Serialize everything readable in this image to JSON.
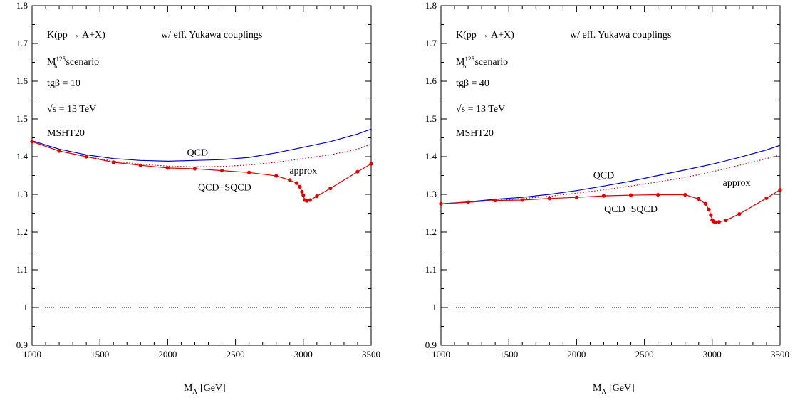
{
  "chart_data": [
    {
      "type": "line",
      "title_lines": [
        "K(pp → A+X)",
        "w/ eff. Yukawa couplings",
        "M_h^125 scenario",
        "tgβ = 10",
        "√s = 13 TeV",
        "MSHT20"
      ],
      "info": {
        "k_label": "K(pp → A+X)",
        "yukawa": "w/ eff. Yukawa couplings",
        "scenario_main": "M",
        "scenario_sub": "h",
        "scenario_sup": "125",
        "scenario_rest": "scenario",
        "tgb": "tgβ = 10",
        "sqrts": "√s = 13 TeV",
        "pdf": "MSHT20"
      },
      "xlabel_main": "M",
      "xlabel_sub": "A",
      "xlabel_rest": "[GeV]",
      "xlim": [
        1000,
        3500
      ],
      "ylim": [
        0.9,
        1.8
      ],
      "xticks": [
        "1000",
        "1500",
        "2000",
        "2500",
        "3000",
        "3500"
      ],
      "yticks": [
        "0.9",
        "1",
        "1.1",
        "1.2",
        "1.3",
        "1.4",
        "1.5",
        "1.6",
        "1.7",
        "1.8"
      ],
      "reference_line": 1.0,
      "series": [
        {
          "name": "QCD",
          "color": "#0000cc",
          "style": "solid",
          "x": [
            1000,
            1200,
            1400,
            1600,
            1800,
            2000,
            2200,
            2400,
            2600,
            2800,
            3000,
            3200,
            3400,
            3500
          ],
          "y": [
            1.442,
            1.42,
            1.405,
            1.395,
            1.39,
            1.388,
            1.39,
            1.392,
            1.398,
            1.41,
            1.425,
            1.44,
            1.46,
            1.473
          ]
        },
        {
          "name": "approx",
          "color": "#cc0000",
          "style": "dotted",
          "x": [
            1000,
            1200,
            1400,
            1600,
            1800,
            2000,
            2200,
            2400,
            2600,
            2800,
            3000,
            3200,
            3400,
            3500
          ],
          "y": [
            1.44,
            1.415,
            1.4,
            1.388,
            1.38,
            1.375,
            1.373,
            1.374,
            1.378,
            1.385,
            1.395,
            1.405,
            1.42,
            1.433
          ]
        },
        {
          "name": "QCD+SQCD",
          "color": "#dd0000",
          "style": "solid",
          "markers": true,
          "x": [
            1000,
            1200,
            1400,
            1600,
            1800,
            2000,
            2200,
            2400,
            2600,
            2800,
            2900,
            2950,
            2975,
            2990,
            3000,
            3010,
            3025,
            3050,
            3100,
            3200,
            3400,
            3500
          ],
          "y": [
            1.44,
            1.415,
            1.4,
            1.385,
            1.377,
            1.37,
            1.368,
            1.363,
            1.358,
            1.349,
            1.338,
            1.33,
            1.32,
            1.307,
            1.298,
            1.285,
            1.283,
            1.285,
            1.295,
            1.316,
            1.36,
            1.381
          ]
        }
      ],
      "series_labels": [
        {
          "text": "QCD",
          "color": "#0000cc",
          "x": 2220,
          "y": 1.403
        },
        {
          "text": "approx",
          "color": "#dd0000",
          "x": 3000,
          "y": 1.355
        },
        {
          "text": "QCD+SQCD",
          "color": "#dd0000",
          "x": 2420,
          "y": 1.31
        }
      ]
    },
    {
      "type": "line",
      "title_lines": [
        "K(pp → A+X)",
        "w/ eff. Yukawa couplings",
        "M_h^125 scenario",
        "tgβ = 40",
        "√s = 13 TeV",
        "MSHT20"
      ],
      "info": {
        "k_label": "K(pp → A+X)",
        "yukawa": "w/ eff. Yukawa couplings",
        "scenario_main": "M",
        "scenario_sub": "h",
        "scenario_sup": "125",
        "scenario_rest": "scenario",
        "tgb": "tgβ = 40",
        "sqrts": "√s = 13 TeV",
        "pdf": "MSHT20"
      },
      "xlabel_main": "M",
      "xlabel_sub": "A",
      "xlabel_rest": "[GeV]",
      "xlim": [
        1000,
        3500
      ],
      "ylim": [
        0.9,
        1.8
      ],
      "xticks": [
        "1000",
        "1500",
        "2000",
        "2500",
        "3000",
        "3500"
      ],
      "yticks": [
        "0.9",
        "1",
        "1.1",
        "1.2",
        "1.3",
        "1.4",
        "1.5",
        "1.6",
        "1.7",
        "1.8"
      ],
      "reference_line": 1.0,
      "series": [
        {
          "name": "QCD",
          "color": "#0000cc",
          "style": "solid",
          "x": [
            1000,
            1200,
            1400,
            1600,
            1800,
            2000,
            2200,
            2400,
            2600,
            2800,
            3000,
            3200,
            3400,
            3500
          ],
          "y": [
            1.275,
            1.28,
            1.287,
            1.292,
            1.3,
            1.31,
            1.322,
            1.335,
            1.35,
            1.365,
            1.38,
            1.398,
            1.418,
            1.43
          ]
        },
        {
          "name": "approx",
          "color": "#cc0000",
          "style": "dotted",
          "x": [
            1000,
            1200,
            1400,
            1600,
            1800,
            2000,
            2200,
            2400,
            2600,
            2800,
            3000,
            3200,
            3400,
            3500
          ],
          "y": [
            1.275,
            1.279,
            1.284,
            1.289,
            1.295,
            1.303,
            1.312,
            1.322,
            1.333,
            1.345,
            1.36,
            1.377,
            1.395,
            1.405
          ]
        },
        {
          "name": "QCD+SQCD",
          "color": "#dd0000",
          "style": "solid",
          "markers": true,
          "x": [
            1000,
            1200,
            1400,
            1600,
            1800,
            2000,
            2200,
            2400,
            2600,
            2800,
            2900,
            2950,
            2975,
            2990,
            3000,
            3010,
            3025,
            3050,
            3100,
            3200,
            3400,
            3500
          ],
          "y": [
            1.275,
            1.279,
            1.284,
            1.285,
            1.289,
            1.292,
            1.296,
            1.298,
            1.299,
            1.299,
            1.288,
            1.275,
            1.26,
            1.245,
            1.232,
            1.228,
            1.226,
            1.227,
            1.231,
            1.248,
            1.29,
            1.312
          ]
        }
      ],
      "series_labels": [
        {
          "text": "QCD",
          "color": "#0000cc",
          "x": 2200,
          "y": 1.342
        },
        {
          "text": "approx",
          "color": "#dd0000",
          "x": 3180,
          "y": 1.323
        },
        {
          "text": "QCD+SQCD",
          "color": "#dd0000",
          "x": 2400,
          "y": 1.253
        }
      ]
    }
  ]
}
